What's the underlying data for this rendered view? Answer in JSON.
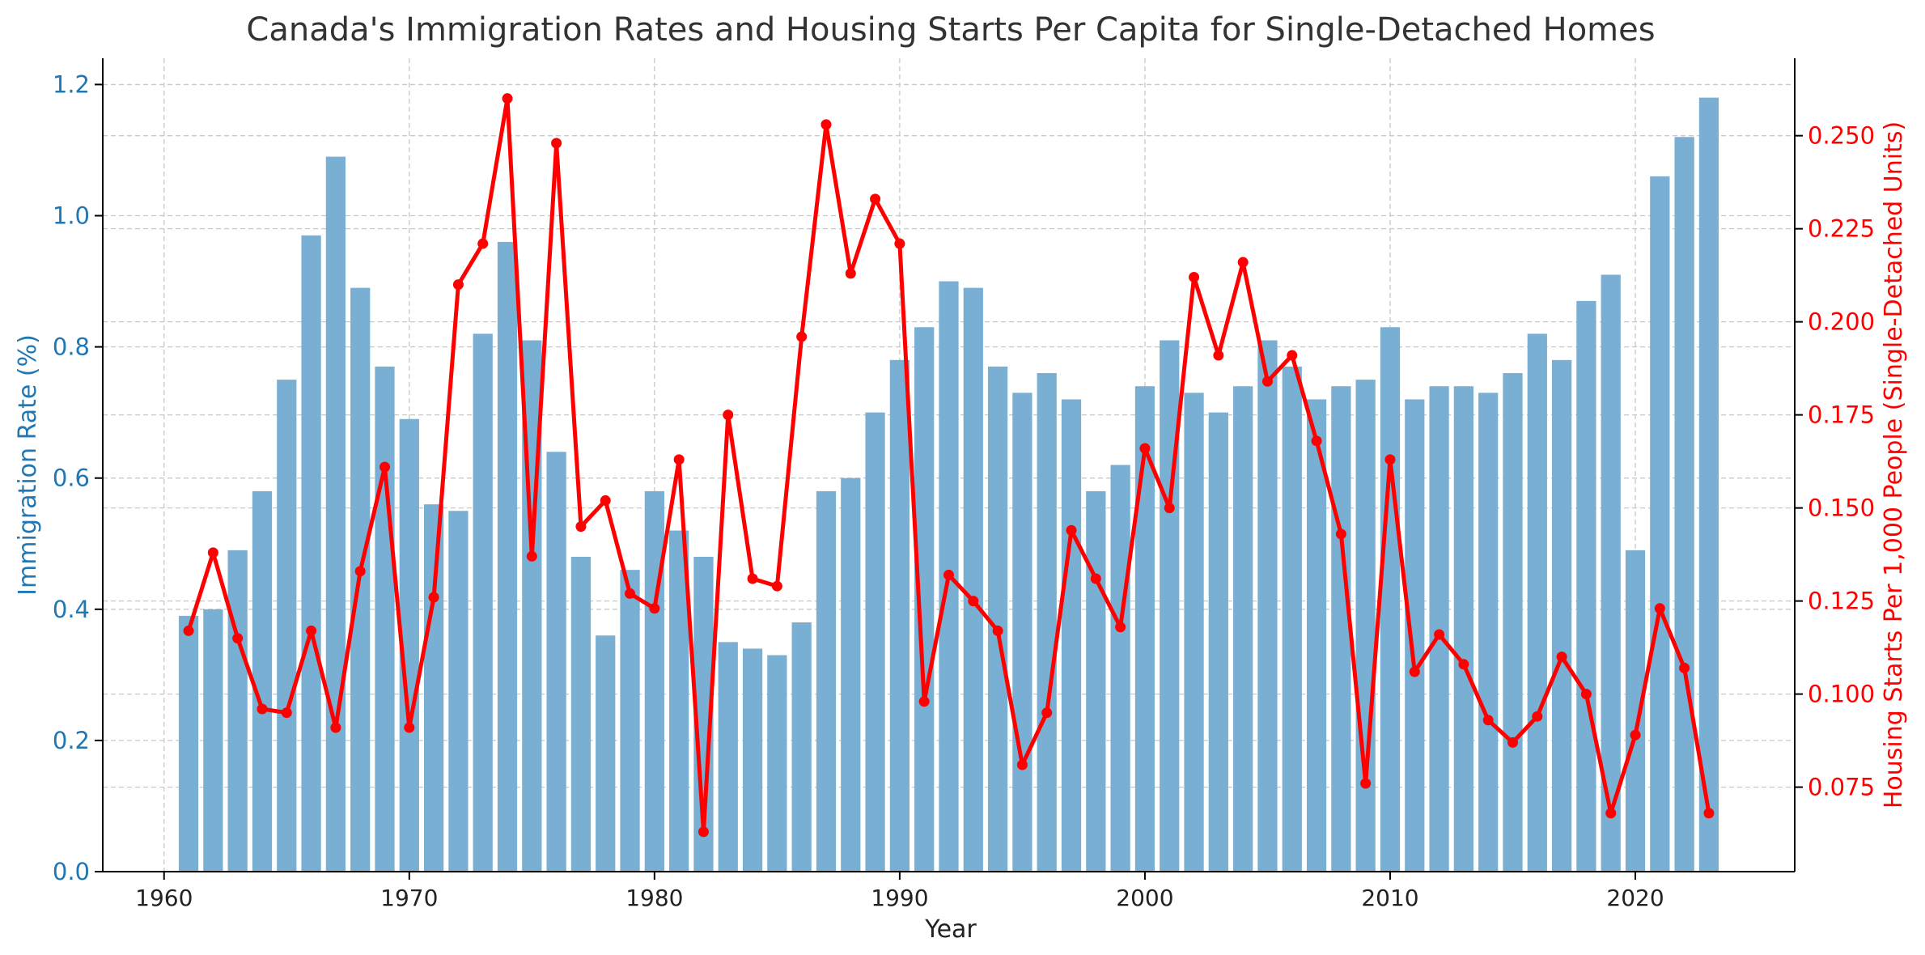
{
  "chart_data": {
    "type": "bar",
    "title": "Canada's Immigration Rates and Housing Starts Per Capita for Single-Detached Homes",
    "xlabel": "Year",
    "x_ticks": [
      "1960",
      "1970",
      "1980",
      "1990",
      "2000",
      "2010",
      "2020"
    ],
    "x_range": [
      1957.5,
      2026.5
    ],
    "grid": true,
    "x": [
      1961,
      1962,
      1963,
      1964,
      1965,
      1966,
      1967,
      1968,
      1969,
      1970,
      1971,
      1972,
      1973,
      1974,
      1975,
      1976,
      1977,
      1978,
      1979,
      1980,
      1981,
      1982,
      1983,
      1984,
      1985,
      1986,
      1987,
      1988,
      1989,
      1990,
      1991,
      1992,
      1993,
      1994,
      1995,
      1996,
      1997,
      1998,
      1999,
      2000,
      2001,
      2002,
      2003,
      2004,
      2005,
      2006,
      2007,
      2008,
      2009,
      2010,
      2011,
      2012,
      2013,
      2014,
      2015,
      2016,
      2017,
      2018,
      2019,
      2020,
      2021,
      2022,
      2023
    ],
    "series": [
      {
        "type": "bar",
        "axis": "left",
        "color": "#7aafd4",
        "values": [
          0.39,
          0.4,
          0.49,
          0.58,
          0.75,
          0.97,
          1.09,
          0.89,
          0.77,
          0.69,
          0.56,
          0.55,
          0.82,
          0.96,
          0.81,
          0.64,
          0.48,
          0.36,
          0.46,
          0.58,
          0.52,
          0.48,
          0.35,
          0.34,
          0.33,
          0.38,
          0.58,
          0.6,
          0.7,
          0.78,
          0.83,
          0.9,
          0.89,
          0.77,
          0.73,
          0.76,
          0.72,
          0.58,
          0.62,
          0.74,
          0.81,
          0.73,
          0.7,
          0.74,
          0.81,
          0.77,
          0.72,
          0.74,
          0.75,
          0.83,
          0.72,
          0.74,
          0.74,
          0.73,
          0.76,
          0.82,
          0.78,
          0.87,
          0.91,
          0.49,
          1.06,
          1.12,
          1.18
        ]
      },
      {
        "type": "line",
        "axis": "right",
        "color": "#ff0000",
        "values": [
          0.117,
          0.138,
          0.115,
          0.096,
          0.095,
          0.117,
          0.091,
          0.133,
          0.161,
          0.091,
          0.126,
          0.21,
          0.221,
          0.26,
          0.137,
          0.248,
          0.145,
          0.152,
          0.127,
          0.123,
          0.163,
          0.063,
          0.175,
          0.131,
          0.129,
          0.196,
          0.253,
          0.213,
          0.233,
          0.221,
          0.098,
          0.132,
          0.125,
          0.117,
          0.081,
          0.095,
          0.144,
          0.131,
          0.118,
          0.166,
          0.15,
          0.212,
          0.191,
          0.216,
          0.184,
          0.191,
          0.168,
          0.143,
          0.076,
          0.163,
          0.106,
          0.116,
          0.108,
          0.093,
          0.087,
          0.094,
          0.11,
          0.1,
          0.068,
          0.089,
          0.123,
          0.107,
          0.068
        ]
      }
    ],
    "y_left": {
      "label": "Immigration Rate (%)",
      "color": "#1f77b4",
      "range": [
        0,
        1.24
      ],
      "ticks": [
        "0.0",
        "0.2",
        "0.4",
        "0.6",
        "0.8",
        "1.0",
        "1.2"
      ]
    },
    "y_right": {
      "label": "Housing Starts Per 1,000 People (Single-Detached Units)",
      "color": "#ff0000",
      "range": [
        0.0523,
        0.2708
      ],
      "ticks": [
        "0.075",
        "0.100",
        "0.125",
        "0.150",
        "0.175",
        "0.200",
        "0.225",
        "0.250"
      ]
    }
  }
}
